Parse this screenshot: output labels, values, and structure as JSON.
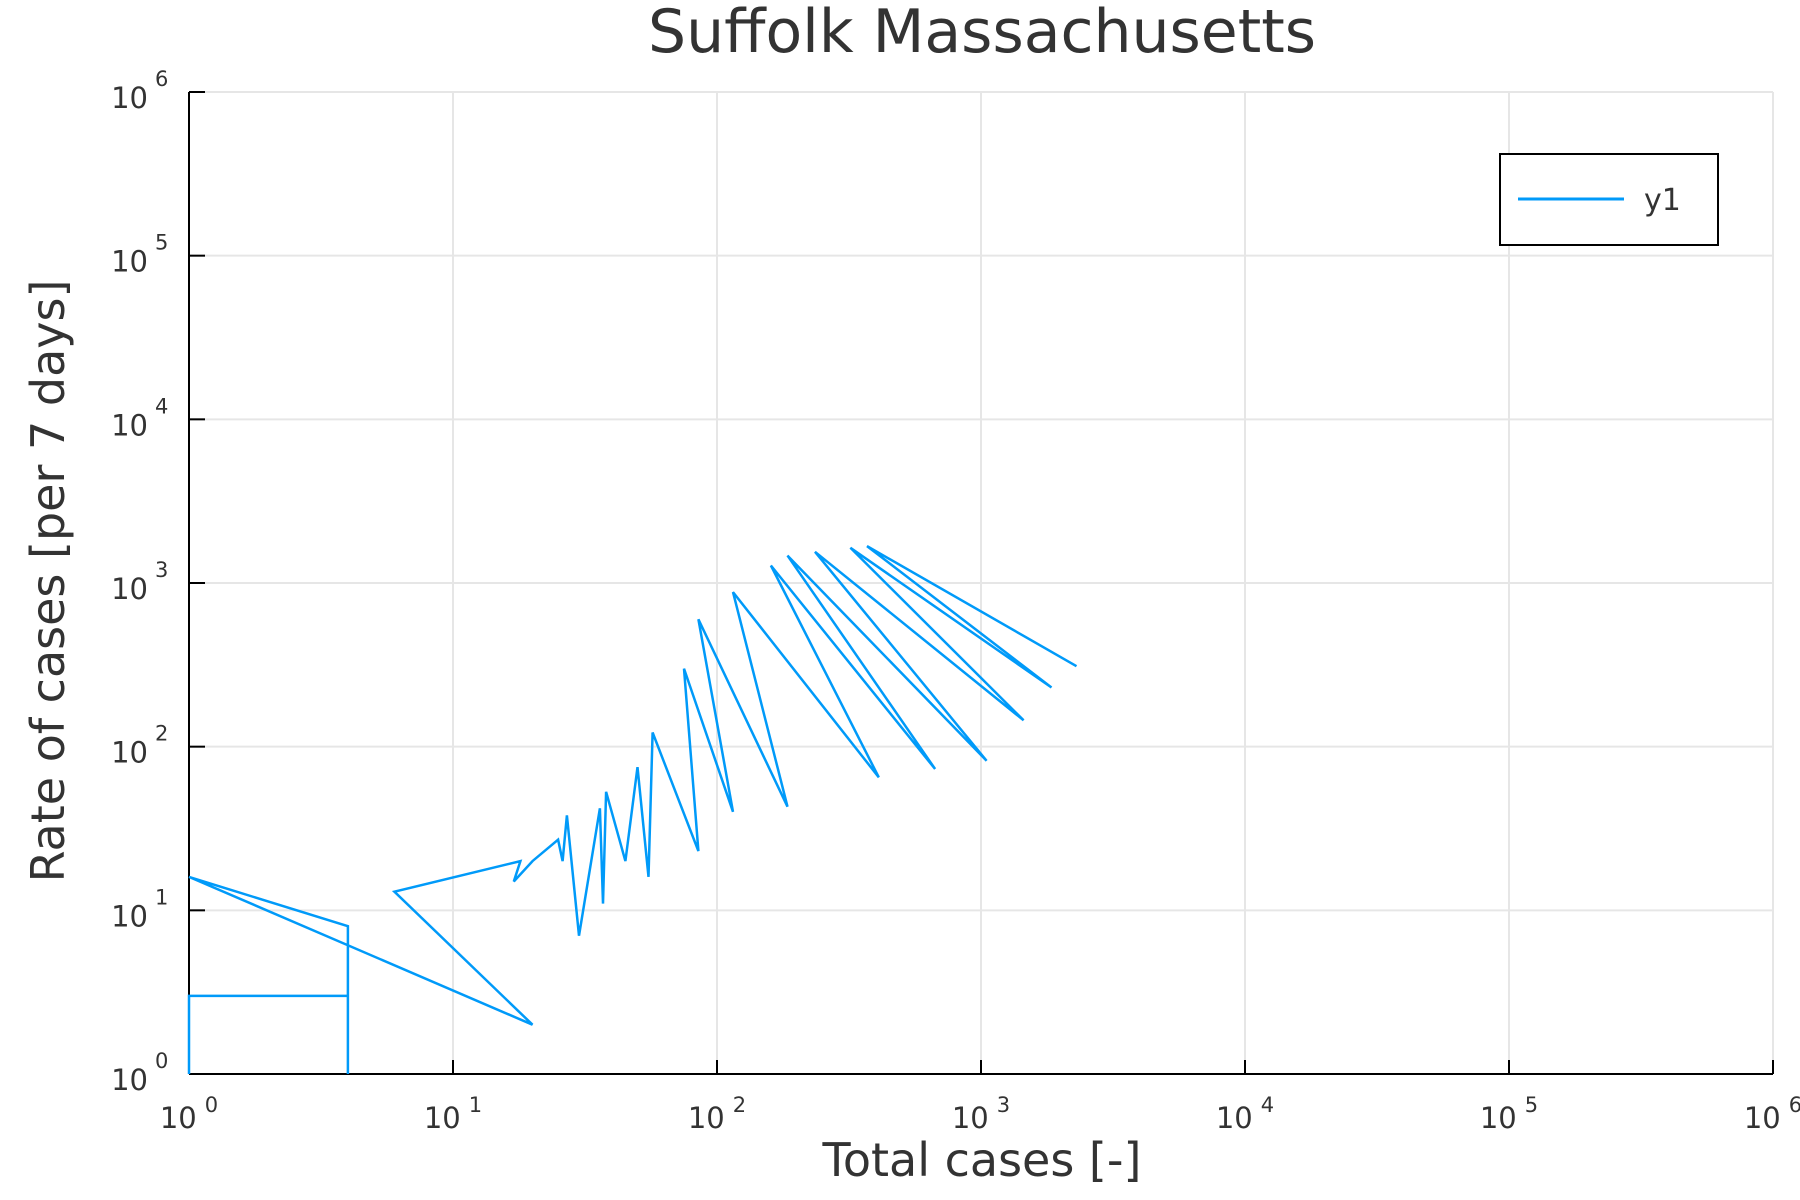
{
  "chart_data": {
    "type": "line",
    "title": "Suffolk Massachusetts",
    "xlabel": "Total cases [-]",
    "ylabel": "Rate of cases [per 7 days]",
    "xscale": "log10",
    "yscale": "log10",
    "xlim": [
      1,
      1000000
    ],
    "ylim": [
      1,
      1000000
    ],
    "grid": true,
    "legend_position": "top-right",
    "x_ticks": [
      {
        "base": "10",
        "exp": "0",
        "value": 1
      },
      {
        "base": "10",
        "exp": "1",
        "value": 10
      },
      {
        "base": "10",
        "exp": "2",
        "value": 100
      },
      {
        "base": "10",
        "exp": "3",
        "value": 1000
      },
      {
        "base": "10",
        "exp": "4",
        "value": 10000
      },
      {
        "base": "10",
        "exp": "5",
        "value": 100000
      },
      {
        "base": "10",
        "exp": "6",
        "value": 1000000
      }
    ],
    "y_ticks": [
      {
        "base": "10",
        "exp": "0",
        "value": 1
      },
      {
        "base": "10",
        "exp": "1",
        "value": 10
      },
      {
        "base": "10",
        "exp": "2",
        "value": 100
      },
      {
        "base": "10",
        "exp": "3",
        "value": 1000
      },
      {
        "base": "10",
        "exp": "4",
        "value": 10000
      },
      {
        "base": "10",
        "exp": "5",
        "value": 100000
      },
      {
        "base": "10",
        "exp": "6",
        "value": 1000000
      }
    ],
    "colors": {
      "series": "#009af9",
      "grid": "#e6e6e6",
      "axis": "#000000",
      "text": "#333333"
    },
    "series": [
      {
        "name": "y1",
        "x": [
          1,
          1,
          4,
          4,
          4,
          1,
          20,
          6,
          18,
          17,
          20,
          25,
          26,
          27,
          30,
          36,
          37,
          38,
          45,
          50,
          55,
          57,
          85,
          75,
          115,
          85,
          185,
          115,
          410,
          160,
          670,
          185,
          1050,
          235,
          1450,
          320,
          1850,
          370,
          2300
        ],
        "y": [
          1,
          3,
          3,
          1,
          8,
          16,
          2,
          13,
          20,
          15,
          20,
          27,
          20,
          38,
          7,
          42,
          11,
          53,
          20,
          75,
          16,
          122,
          23,
          300,
          40,
          600,
          43,
          880,
          65,
          1280,
          73,
          1470,
          82,
          1550,
          145,
          1640,
          230,
          1680,
          310
        ]
      }
    ]
  }
}
